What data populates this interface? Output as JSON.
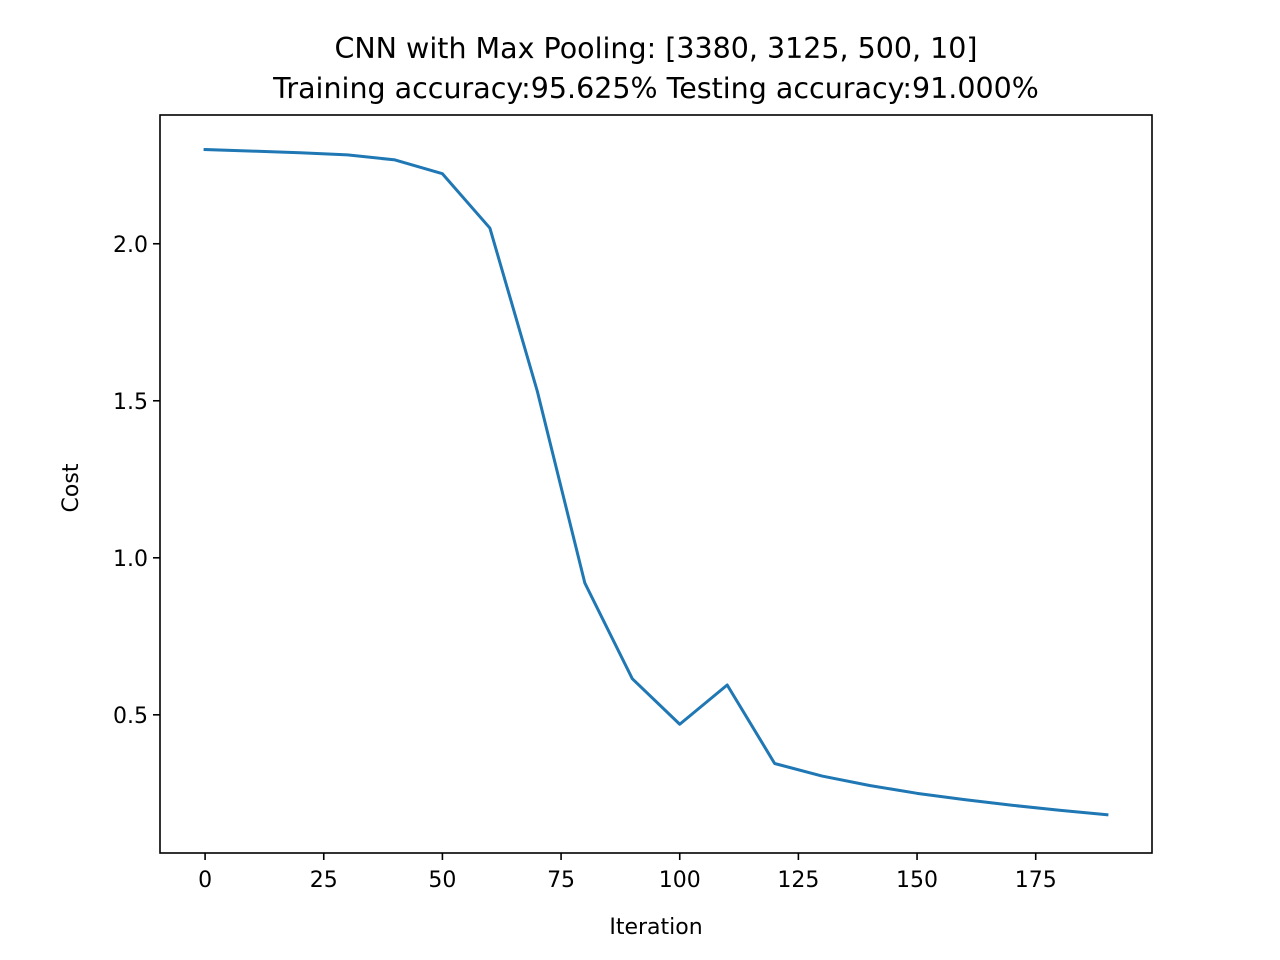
{
  "chart_data": {
    "type": "line",
    "title": "CNN with Max Pooling: [3380, 3125, 500, 10]",
    "subtitle": "Training accuracy:95.625% Testing accuracy:91.000%",
    "xlabel": "Iteration",
    "ylabel": "Cost",
    "xlim": [
      -9.5,
      199.5
    ],
    "ylim": [
      0.06,
      2.41
    ],
    "xticks": [
      0,
      25,
      50,
      75,
      100,
      125,
      150,
      175
    ],
    "xtick_labels": [
      "0",
      "25",
      "50",
      "75",
      "100",
      "125",
      "150",
      "175"
    ],
    "yticks": [
      0.5,
      1.0,
      1.5,
      2.0
    ],
    "ytick_labels": [
      "0.5",
      "1.0",
      "1.5",
      "2.0"
    ],
    "grid": false,
    "series": [
      {
        "color": "#1f77b4",
        "x": [
          0,
          10,
          20,
          30,
          40,
          50,
          60,
          70,
          80,
          90,
          100,
          110,
          120,
          130,
          140,
          150,
          160,
          170,
          180,
          190
        ],
        "y": [
          2.3,
          2.295,
          2.29,
          2.283,
          2.267,
          2.223,
          2.05,
          1.53,
          0.92,
          0.615,
          0.47,
          0.595,
          0.345,
          0.305,
          0.275,
          0.25,
          0.23,
          0.212,
          0.196,
          0.182
        ]
      }
    ]
  }
}
